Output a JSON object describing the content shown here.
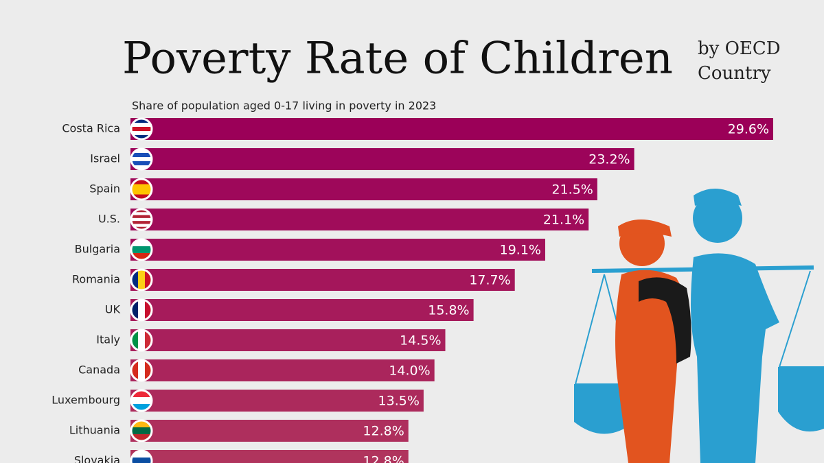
{
  "chart_data": {
    "type": "bar",
    "orientation": "horizontal",
    "title": "Poverty Rate of Children",
    "title_side": [
      "by OECD",
      "Country"
    ],
    "subtitle": "Share of population aged 0-17 living in poverty in 2023",
    "categories": [
      "Costa Rica",
      "Israel",
      "Spain",
      "U.S.",
      "Bulgaria",
      "Romania",
      "UK",
      "Italy",
      "Canada",
      "Luxembourg",
      "Lithuania",
      "Slovakia"
    ],
    "values": [
      29.6,
      23.2,
      21.5,
      21.1,
      19.1,
      17.7,
      15.8,
      14.5,
      14.0,
      13.5,
      12.8,
      12.8
    ],
    "value_labels": [
      "29.6%",
      "23.2%",
      "21.5%",
      "21.1%",
      "19.1%",
      "17.7%",
      "15.8%",
      "14.5%",
      "14.0%",
      "13.5%",
      "12.8%",
      "12.8%"
    ],
    "colors": [
      "#9b0058",
      "#9c045a",
      "#9e085a",
      "#a00c5a",
      "#a2115b",
      "#a4165b",
      "#a61b5b",
      "#a8205c",
      "#aa255c",
      "#ac2a5c",
      "#ae2f5d",
      "#b0345d"
    ]
  }
}
